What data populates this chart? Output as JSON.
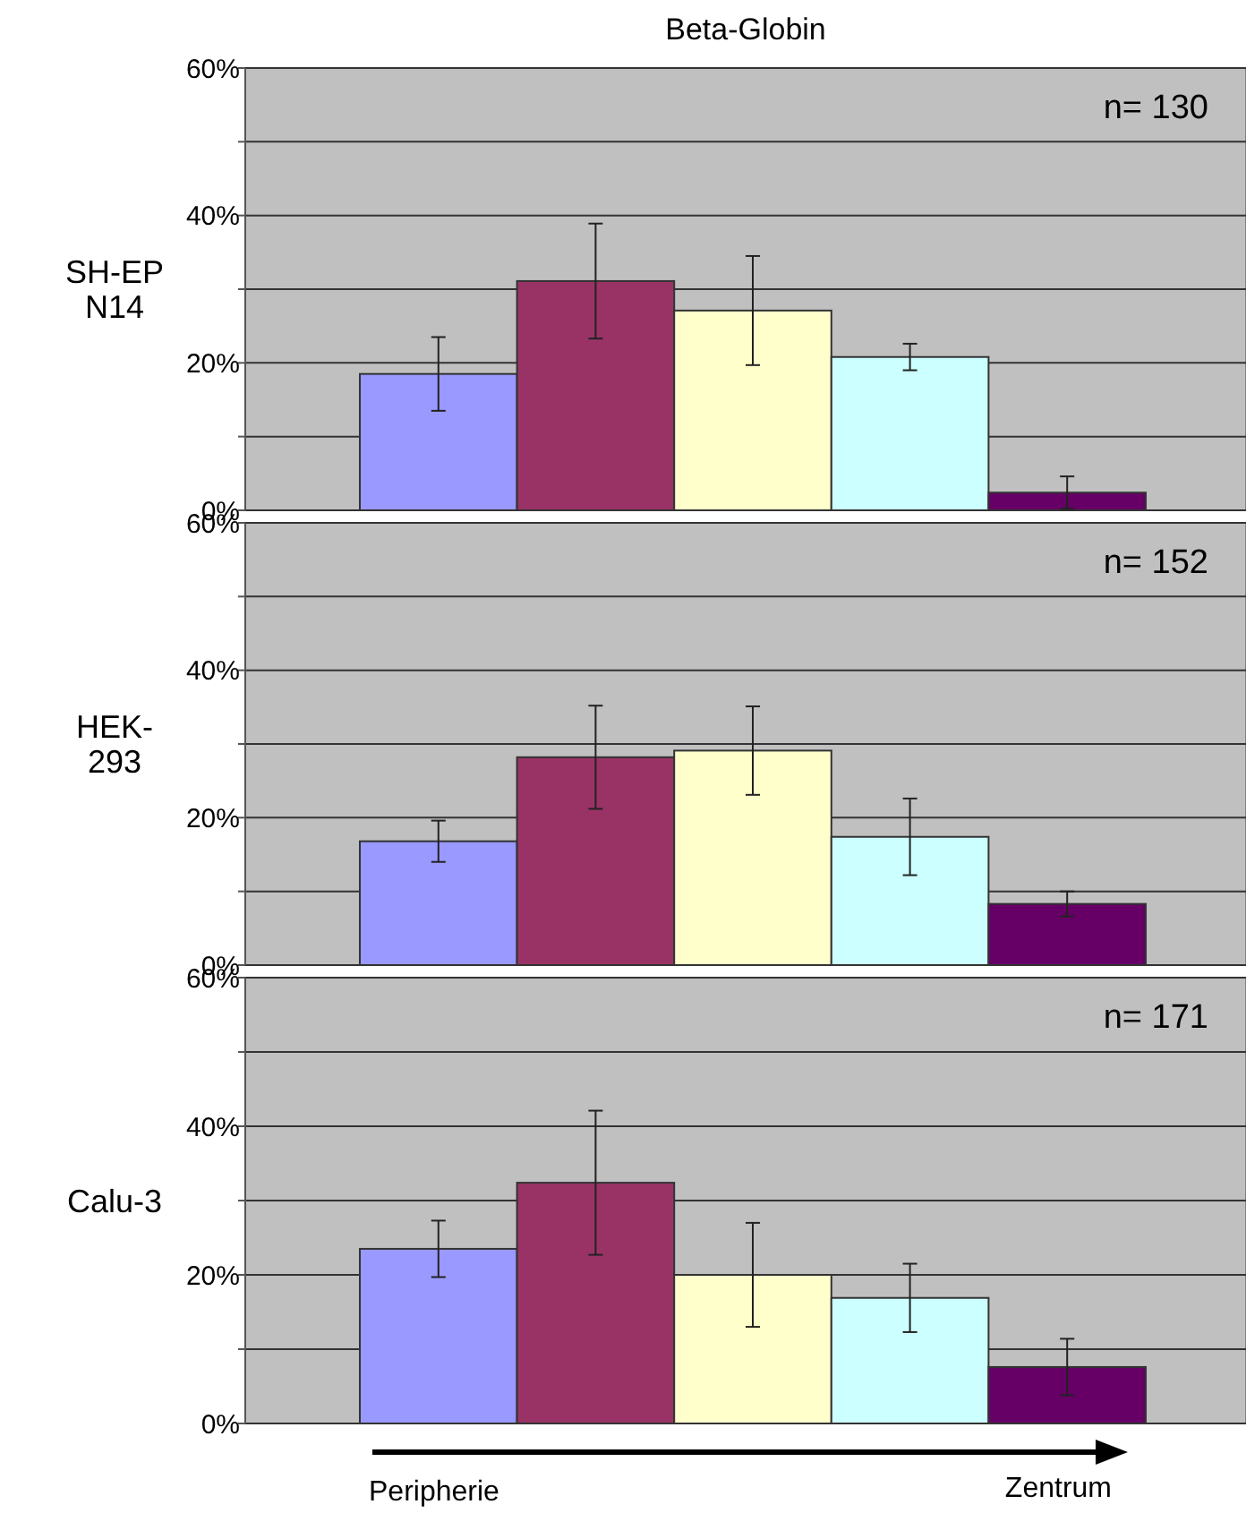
{
  "chart_data": [
    {
      "type": "bar",
      "title": "Beta-Globin",
      "ylabel": "SH-EP\nN14",
      "categories": [
        null,
        null,
        null,
        null,
        null
      ],
      "values": [
        18.5,
        31.1,
        27.1,
        20.8,
        2.4
      ],
      "errors": [
        5,
        7.8,
        7.4,
        1.8,
        2.2
      ],
      "colors": [
        "#9999ff",
        "#993366",
        "#ffffcc",
        "#ccffff",
        "#660066"
      ],
      "ylim": [
        0,
        60
      ],
      "yticks": [
        {
          "value": 0,
          "label": "0%"
        },
        {
          "value": 10,
          "label": null
        },
        {
          "value": 20,
          "label": "20%"
        },
        {
          "value": 30,
          "label": null
        },
        {
          "value": 40,
          "label": "40%"
        },
        {
          "value": 50,
          "label": null
        },
        {
          "value": 60,
          "label": "60%"
        }
      ],
      "grid": "y",
      "tick_labels": "y",
      "annotations": [
        "n= 130"
      ]
    },
    {
      "type": "bar",
      "ylabel": "HEK-\n293",
      "categories": [
        null,
        null,
        null,
        null,
        null
      ],
      "values": [
        16.8,
        28.2,
        29.1,
        17.4,
        8.3
      ],
      "errors": [
        2.8,
        7,
        6,
        5.2,
        1.7
      ],
      "colors": [
        "#9999ff",
        "#993366",
        "#ffffcc",
        "#ccffff",
        "#660066"
      ],
      "ylim": [
        0,
        60
      ],
      "yticks": [
        {
          "value": 0,
          "label": "0%"
        },
        {
          "value": 10,
          "label": null
        },
        {
          "value": 20,
          "label": "20%"
        },
        {
          "value": 30,
          "label": null
        },
        {
          "value": 40,
          "label": "40%"
        },
        {
          "value": 50,
          "label": null
        },
        {
          "value": 60,
          "label": "60%"
        }
      ],
      "grid": "y",
      "tick_labels": "y",
      "annotations": [
        "n= 152"
      ]
    },
    {
      "type": "bar",
      "ylabel": "Calu-3",
      "categories": [
        null,
        null,
        null,
        null,
        null
      ],
      "values": [
        23.5,
        32.4,
        20,
        16.9,
        7.6
      ],
      "errors": [
        3.8,
        9.7,
        7,
        4.6,
        3.8
      ],
      "colors": [
        "#9999ff",
        "#993366",
        "#ffffcc",
        "#ccffff",
        "#660066"
      ],
      "ylim": [
        0,
        60
      ],
      "yticks": [
        {
          "value": 0,
          "label": "0%"
        },
        {
          "value": 10,
          "label": null
        },
        {
          "value": 20,
          "label": "20%"
        },
        {
          "value": 30,
          "label": null
        },
        {
          "value": 40,
          "label": "40%"
        },
        {
          "value": 50,
          "label": null
        },
        {
          "value": 60,
          "label": "60%"
        }
      ],
      "grid": "y",
      "tick_labels": "y",
      "annotations": [
        "n= 171",
        "Peripherie",
        "Zentrum"
      ]
    }
  ]
}
